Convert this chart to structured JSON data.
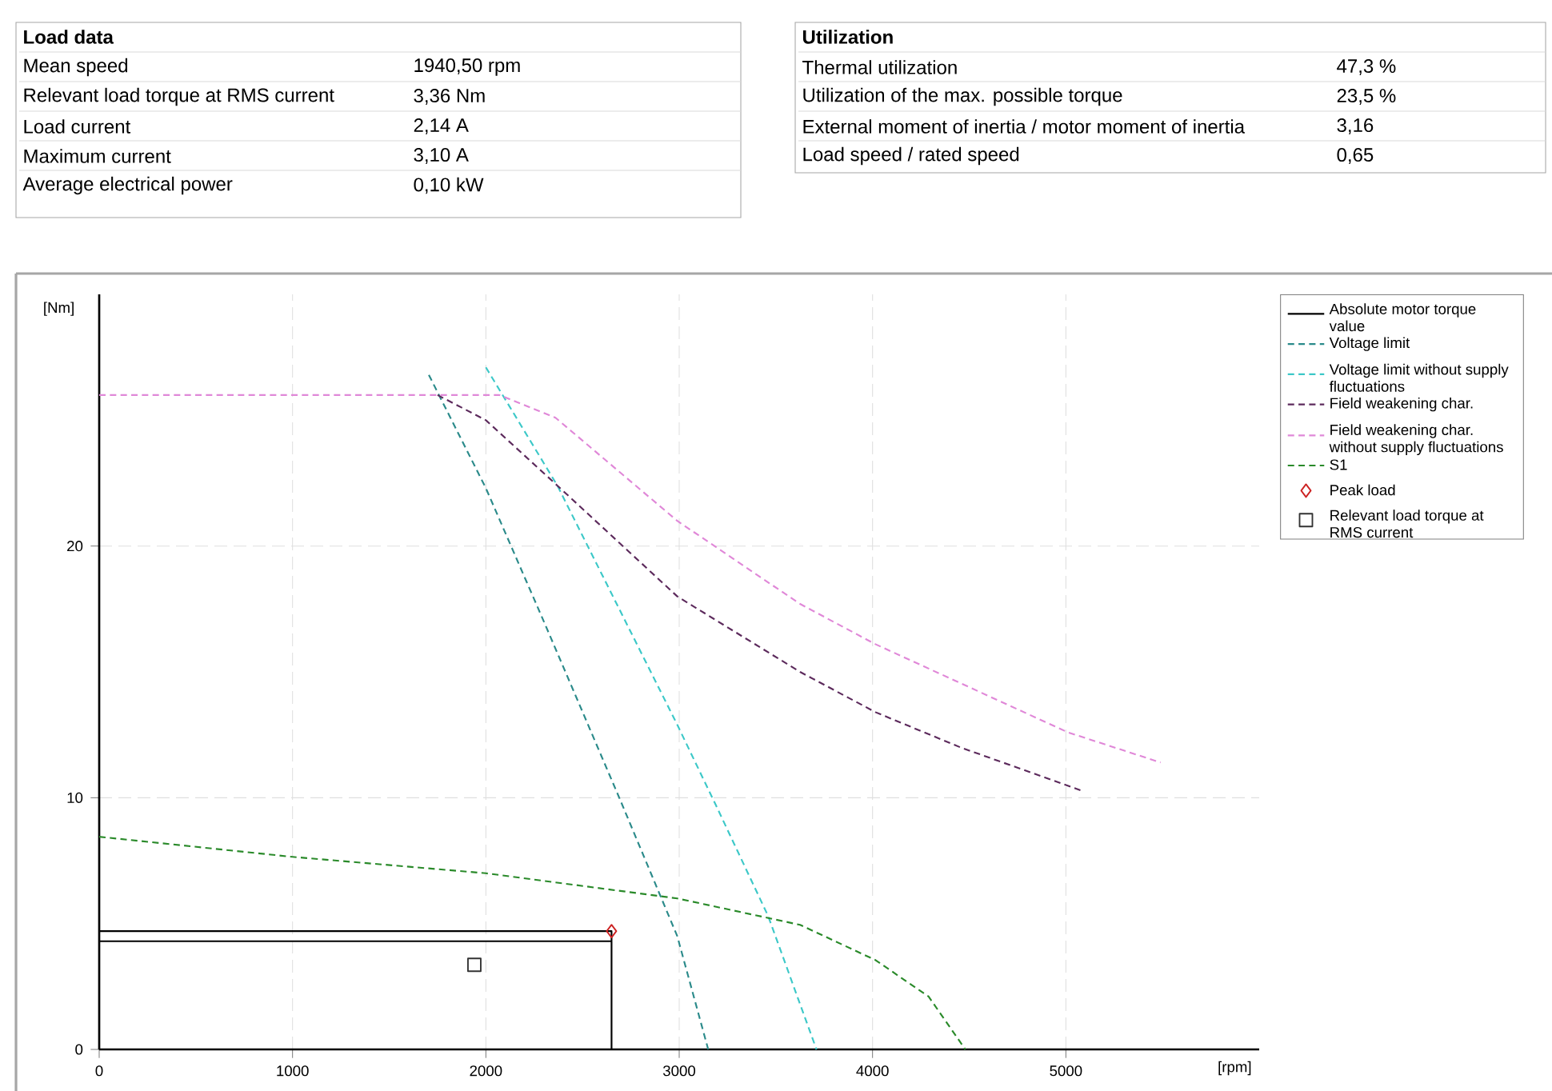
{
  "chart_data": {
    "type": "line",
    "xlabel": "[rpm]",
    "ylabel": "[Nm]",
    "xlim": [
      0,
      6000
    ],
    "ylim": [
      0,
      30
    ],
    "xticks": [
      0,
      1000,
      2000,
      3000,
      4000,
      5000
    ],
    "yticks": [
      0,
      10,
      20
    ],
    "grid": true,
    "legend": "right",
    "series": [
      {
        "name": "Absolute motor torque value",
        "color": "#000000",
        "line_style": "solid",
        "marker": "none",
        "x": [
          0,
          2650,
          2650,
          2650,
          0
        ],
        "values": [
          4.7,
          4.7,
          0,
          4.3,
          4.3
        ]
      },
      {
        "name": "Voltage limit",
        "color": "#2a8a8a",
        "line_style": "dashed",
        "marker": "none",
        "x": [
          1705,
          2000,
          2300,
          2690,
          2990,
          3150
        ],
        "values": [
          26.8,
          22.3,
          17.0,
          10.0,
          4.5,
          0
        ]
      },
      {
        "name": "Voltage limit without supply fluctuations",
        "color": "#3cc8c8",
        "line_style": "dashed",
        "marker": "none",
        "x": [
          2000,
          2370,
          2990,
          3190,
          3460,
          3710
        ],
        "values": [
          27.1,
          22.4,
          12.9,
          9.7,
          5.3,
          0
        ]
      },
      {
        "name": "Field weakening char.",
        "color": "#5c2a5c",
        "line_style": "dashed",
        "marker": "none",
        "x": [
          1750,
          2000,
          2370,
          2990,
          3625,
          4015,
          4455,
          5075
        ],
        "values": [
          26.0,
          25.0,
          22.4,
          18.0,
          15.0,
          13.4,
          12.0,
          10.3
        ]
      },
      {
        "name": "Field weakening char. without supply fluctuations",
        "color": "#e088d8",
        "line_style": "dashed",
        "marker": "none",
        "x": [
          0,
          2070,
          2360,
          2990,
          3625,
          4015,
          5010,
          5490
        ],
        "values": [
          26.0,
          26.0,
          25.1,
          21.0,
          17.7,
          16.1,
          12.6,
          11.4
        ]
      },
      {
        "name": "S1",
        "color": "#2a8a2a",
        "line_style": "dashed",
        "marker": "none",
        "x": [
          0,
          1000,
          2000,
          2990,
          3625,
          4015,
          4290,
          4480
        ],
        "values": [
          8.45,
          7.65,
          7.0,
          6.0,
          4.95,
          3.55,
          2.1,
          0
        ]
      },
      {
        "name": "Peak load",
        "type": "scatter",
        "color": "#cc2222",
        "marker": "diamond",
        "x": [
          2650
        ],
        "values": [
          4.7
        ]
      },
      {
        "name": "Relevant load torque at RMS current",
        "type": "scatter",
        "color": "#333333",
        "marker": "square",
        "x": [
          1940.5
        ],
        "values": [
          3.36
        ]
      }
    ],
    "annotations": [
      "Load data",
      "Mean speed",
      "1940,50 rpm",
      "Relevant load torque at RMS current",
      "3,36 Nm",
      "Load current",
      "2,14 A",
      "Maximum current",
      "3,10 A",
      "Average electrical power",
      "0,10 kW",
      "Utilization",
      "Thermal utilization",
      "47,3 %",
      "Utilization of the max. possible torque",
      "23,5 %",
      "External moment of inertia / motor moment of inertia",
      "3,16",
      "Load speed / rated speed",
      "0,65"
    ]
  }
}
